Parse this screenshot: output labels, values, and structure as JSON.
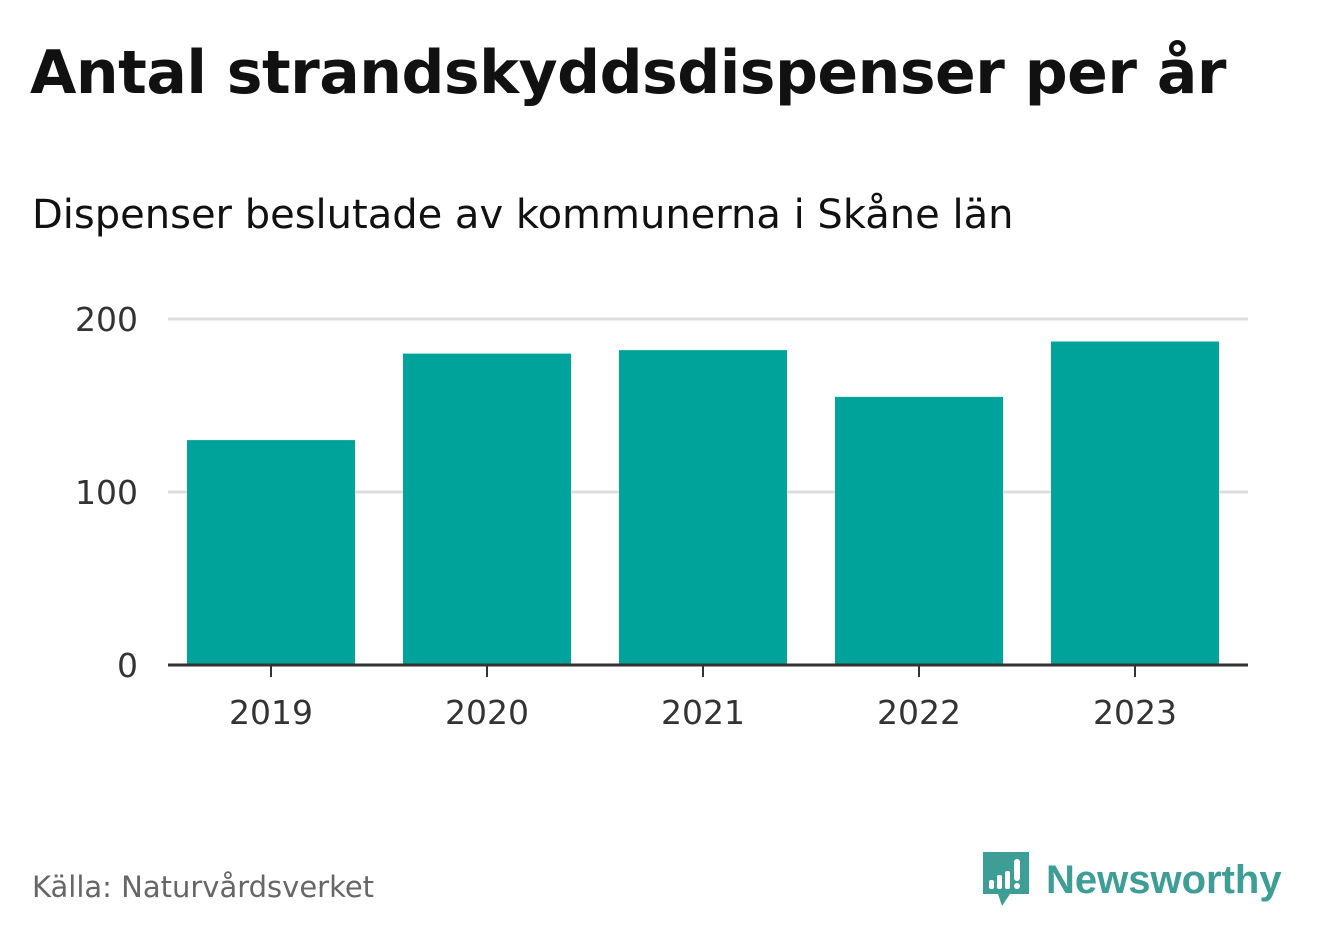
{
  "title": "Antal strandskyddsdispenser per år",
  "subtitle": "Dispenser beslutade av kommunerna i Skåne län",
  "source": "Källa: Naturvårdsverket",
  "logo": "Newsworthy",
  "colors": {
    "bar": "#00a39a",
    "grid": "#dddddd",
    "axis": "#333333",
    "logo": "#3e9e95"
  },
  "chart_data": {
    "type": "bar",
    "title": "Antal strandskyddsdispenser per år",
    "subtitle": "Dispenser beslutade av kommunerna i Skåne län",
    "categories": [
      "2019",
      "2020",
      "2021",
      "2022",
      "2023"
    ],
    "values": [
      130,
      180,
      182,
      155,
      187
    ],
    "xlabel": "",
    "ylabel": "",
    "ylim": [
      0,
      200
    ],
    "yticks": [
      "0",
      "100",
      "200"
    ],
    "grid": true,
    "legend": "none"
  }
}
